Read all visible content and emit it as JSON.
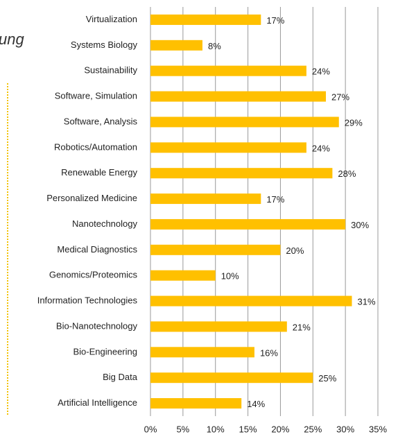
{
  "chart_data": {
    "type": "bar",
    "orientation": "horizontal",
    "annotation": "ung",
    "categories": [
      "Virtualization",
      "Systems Biology",
      "Sustainability",
      "Software, Simulation",
      "Software, Analysis",
      "Robotics/Automation",
      "Renewable Energy",
      "Personalized Medicine",
      "Nanotechnology",
      "Medical Diagnostics",
      "Genomics/Proteomics",
      "Information Technologies",
      "Bio-Nanotechnology",
      "Bio-Engineering",
      "Big Data",
      "Artificial Intelligence"
    ],
    "values": [
      17,
      8,
      24,
      27,
      29,
      24,
      28,
      17,
      30,
      20,
      10,
      31,
      21,
      16,
      25,
      14
    ],
    "value_labels": [
      "17%",
      "8%",
      "24%",
      "27%",
      "29%",
      "24%",
      "28%",
      "17%",
      "30%",
      "20%",
      "10%",
      "31%",
      "21%",
      "16%",
      "25%",
      "14%"
    ],
    "color": "#ffc000",
    "xlim": [
      0,
      35
    ],
    "xticks": [
      {
        "value": 0,
        "label": "0%"
      },
      {
        "value": 5,
        "label": "5%"
      },
      {
        "value": 10,
        "label": "10%"
      },
      {
        "value": 15,
        "label": "15%"
      },
      {
        "value": 20,
        "label": "20%"
      },
      {
        "value": 25,
        "label": "25%"
      },
      {
        "value": 30,
        "label": "30%"
      },
      {
        "value": 35,
        "label": "35%"
      }
    ],
    "grid": true
  }
}
